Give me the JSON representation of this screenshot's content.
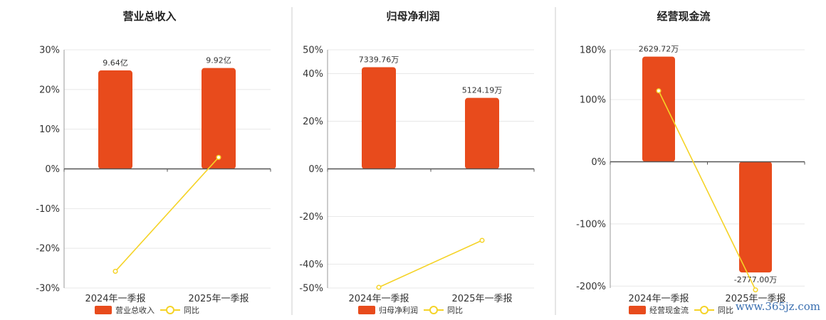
{
  "watermark": "www.365jz.com",
  "colors": {
    "bar": "#E84B1C",
    "line": "#F5D327",
    "grid": "#e8e8e8",
    "axis": "#555555",
    "divider": "#cccccc"
  },
  "legend_line_label": "同比",
  "chart_data": [
    {
      "type": "bar",
      "title": "营业总收入",
      "categories": [
        "2024年一季报",
        "2025年一季报"
      ],
      "series": [
        {
          "name": "营业总收入",
          "type": "bar",
          "values": [
            24.8,
            25.4
          ],
          "labels": [
            "9.64亿",
            "9.92亿"
          ]
        },
        {
          "name": "同比",
          "type": "line",
          "values": [
            -25.8,
            2.9
          ]
        }
      ],
      "ylim": [
        -30,
        30
      ],
      "yticks": [
        30,
        20,
        10,
        0,
        -10,
        -20,
        -30
      ],
      "ytick_labels": [
        "30%",
        "20%",
        "10%",
        "0%",
        "-10%",
        "-20%",
        "-30%"
      ],
      "grid": true,
      "legend": "bottom"
    },
    {
      "type": "bar",
      "title": "归母净利润",
      "categories": [
        "2024年一季报",
        "2025年一季报"
      ],
      "series": [
        {
          "name": "归母净利润",
          "type": "bar",
          "values": [
            42.7,
            29.8
          ],
          "labels": [
            "7339.76万",
            "5124.19万"
          ]
        },
        {
          "name": "同比",
          "type": "line",
          "values": [
            -49.7,
            -30.0
          ]
        }
      ],
      "ylim": [
        -50,
        50
      ],
      "yticks": [
        50,
        40,
        20,
        0,
        -20,
        -40,
        -50
      ],
      "ytick_labels": [
        "50%",
        "40%",
        "20%",
        "0%",
        "-20%",
        "-40%",
        "-50%"
      ],
      "grid": true,
      "legend": "bottom"
    },
    {
      "type": "bar",
      "title": "经营现金流",
      "categories": [
        "2024年一季报",
        "2025年一季报"
      ],
      "series": [
        {
          "name": "经营现金流",
          "type": "bar",
          "values": [
            169,
            -178
          ],
          "labels": [
            "2629.72万",
            "-2777.00万"
          ]
        },
        {
          "name": "同比",
          "type": "line",
          "values": [
            114,
            -206
          ]
        }
      ],
      "ylim": [
        -203,
        180
      ],
      "yticks": [
        180,
        100,
        0,
        -100,
        -200
      ],
      "ytick_labels": [
        "180%",
        "100%",
        "0%",
        "-100%",
        "-200%"
      ],
      "grid": true,
      "legend": "bottom"
    }
  ]
}
